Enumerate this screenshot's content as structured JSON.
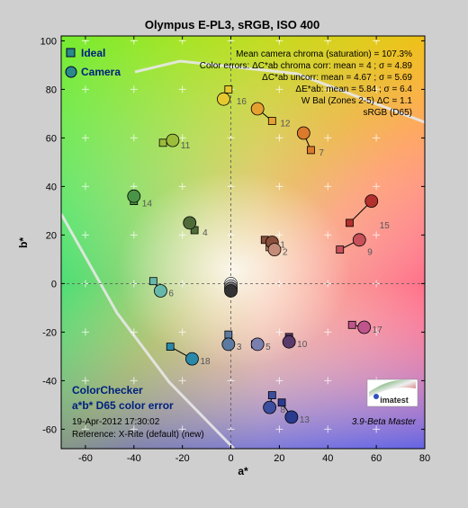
{
  "chart_data": {
    "type": "scatter",
    "title": "Olympus E-PL3, sRGB, ISO 400",
    "xlabel": "a*",
    "ylabel": "b*",
    "xlim": [
      -70,
      80
    ],
    "ylim": [
      -68,
      102
    ],
    "xticks": [
      -60,
      -40,
      -20,
      0,
      20,
      40,
      60,
      80
    ],
    "yticks": [
      -60,
      -40,
      -20,
      0,
      20,
      40,
      60,
      80,
      100
    ],
    "grid": true,
    "legend": [
      {
        "label": "Ideal",
        "marker": "square"
      },
      {
        "label": "Camera",
        "marker": "circle"
      }
    ],
    "stats_lines": [
      "Mean camera chroma (saturation) = 107.3%",
      "Color errors:  ΔC*ab chroma corr:  mean = 4 ;  σ = 4.89",
      "ΔC*ab uncorr:  mean = 4.67 ;  σ = 5.69",
      "ΔE*ab:  mean = 5.84 ;  σ = 6.4",
      "W Bal (Zones 2-5) ΔC = 1.1",
      "sRGB (D65)"
    ],
    "info_lines": [
      "ColorChecker",
      "a*b* D65 color error",
      "19-Apr-2012 17:30:02",
      "Reference: X-Rite (default) (new)"
    ],
    "logo_text": "imatest",
    "version_text": "3.9-Beta  Master",
    "patches": [
      {
        "id": "1",
        "ideal": [
          14,
          18
        ],
        "camera": [
          17,
          17
        ],
        "color": "#8a4f3c"
      },
      {
        "id": "2",
        "ideal": [
          16,
          15
        ],
        "camera": [
          18,
          14
        ],
        "color": "#c48c78"
      },
      {
        "id": "3",
        "ideal": [
          -1,
          -21
        ],
        "camera": [
          -1,
          -25
        ],
        "color": "#5d7aa0"
      },
      {
        "id": "4",
        "ideal": [
          -15,
          22
        ],
        "camera": [
          -17,
          25
        ],
        "color": "#4f6b3a"
      },
      {
        "id": "5",
        "ideal": [
          10,
          -25
        ],
        "camera": [
          11,
          -25
        ],
        "color": "#7a7fb0"
      },
      {
        "id": "6",
        "ideal": [
          -32,
          1
        ],
        "camera": [
          -29,
          -3
        ],
        "color": "#66b8aa"
      },
      {
        "id": "7",
        "ideal": [
          33,
          55
        ],
        "camera": [
          30,
          62
        ],
        "color": "#db7a2c"
      },
      {
        "id": "8",
        "ideal": [
          17,
          -46
        ],
        "camera": [
          16,
          -51
        ],
        "color": "#3c4e9e"
      },
      {
        "id": "9",
        "ideal": [
          45,
          14
        ],
        "camera": [
          53,
          18
        ],
        "color": "#c8505a"
      },
      {
        "id": "10",
        "ideal": [
          24,
          -22
        ],
        "camera": [
          24,
          -24
        ],
        "color": "#5a3a6a"
      },
      {
        "id": "11",
        "ideal": [
          -28,
          58
        ],
        "camera": [
          -24,
          59
        ],
        "color": "#9cbc3c"
      },
      {
        "id": "12",
        "ideal": [
          17,
          67
        ],
        "camera": [
          11,
          72
        ],
        "color": "#e6a030"
      },
      {
        "id": "13",
        "ideal": [
          21,
          -49
        ],
        "camera": [
          25,
          -55
        ],
        "color": "#2a3a8e"
      },
      {
        "id": "14",
        "ideal": [
          -40,
          34
        ],
        "camera": [
          -40,
          36
        ],
        "color": "#4a9448"
      },
      {
        "id": "15",
        "ideal": [
          49,
          25
        ],
        "camera": [
          58,
          34
        ],
        "color": "#b4302c"
      },
      {
        "id": "16",
        "ideal": [
          -1,
          80
        ],
        "camera": [
          -3,
          76
        ],
        "color": "#e6c830"
      },
      {
        "id": "17",
        "ideal": [
          50,
          -17
        ],
        "camera": [
          55,
          -18
        ],
        "color": "#c0548c"
      },
      {
        "id": "18",
        "ideal": [
          -25,
          -26
        ],
        "camera": [
          -16,
          -31
        ],
        "color": "#2a88a8"
      },
      {
        "id": "19",
        "ideal": [
          0,
          0
        ],
        "camera": [
          0,
          0
        ],
        "color": "#f4f4f4"
      },
      {
        "id": "20",
        "ideal": [
          0,
          0
        ],
        "camera": [
          0,
          -1
        ],
        "color": "#c8c8c8"
      },
      {
        "id": "21",
        "ideal": [
          0,
          0
        ],
        "camera": [
          0,
          -2
        ],
        "color": "#a0a0a0"
      },
      {
        "id": "22",
        "ideal": [
          0,
          0
        ],
        "camera": [
          0,
          -2
        ],
        "color": "#7a7a7a"
      },
      {
        "id": "23",
        "ideal": [
          0,
          0
        ],
        "camera": [
          0,
          -3
        ],
        "color": "#555555"
      },
      {
        "id": "24",
        "ideal": [
          0,
          0
        ],
        "camera": [
          0,
          -3
        ],
        "color": "#333333"
      }
    ]
  }
}
